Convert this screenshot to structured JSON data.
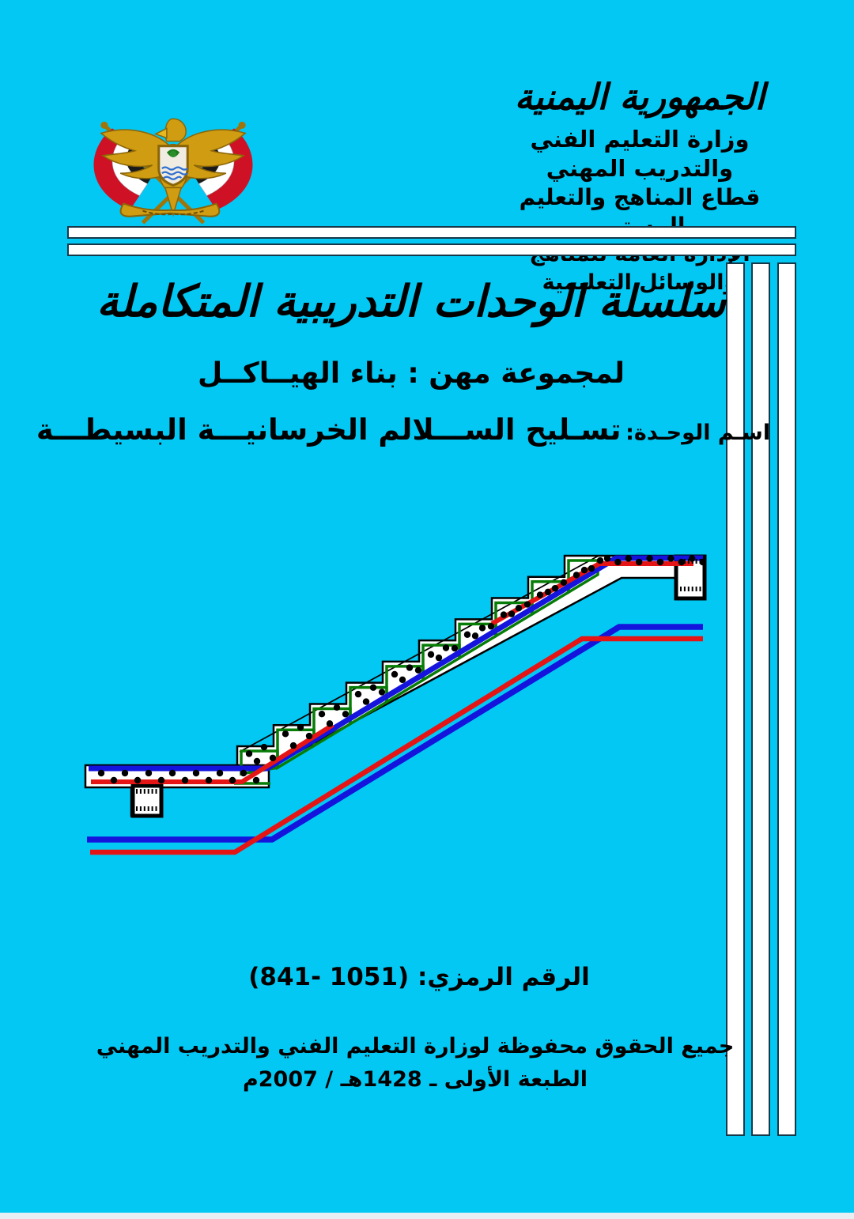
{
  "page": {
    "background": "#03c8f3",
    "stripe_fill": "#ffffff",
    "stripe_border": "#16394a",
    "bottom_edge": "#e8eef2",
    "text_color": "#000000"
  },
  "header": {
    "country_calligraphy": "الجمهورية اليمنية",
    "ministry": "وزارة التعليم الفني والتدريب المهني",
    "sector": "قطاع المناهج والتعليم المستمر",
    "administration": "الإدارة العامة للمناهج والوسائل التعليمية",
    "emblem_icon": "yemen-coat-of-arms"
  },
  "titles": {
    "series": "سلسلة الوحدات التدريبية المتكاملة",
    "group": "لمجموعة مهن : بناء الهيــاكــل",
    "unit_label": "اسـم الوحـدة:",
    "unit_name": "تسـليح الســـلالم الخرسانيـــة البسيطـــة"
  },
  "code": {
    "label": "الرقم الرمزي:",
    "value": "(841- 1051)"
  },
  "footer": {
    "rights": "جميع الحقوق محفوظة لوزارة التعليم الفني والتدريب المهني",
    "edition": "الطبعة الأولى ـ 1428هـ / 2007م"
  },
  "diagram": {
    "type": "technical-drawing",
    "subject": "reinforcement-section-of-simple-concrete-stair",
    "steps": 10,
    "colors": {
      "concrete": "#ffffff",
      "outline": "#000000",
      "stirrup_green": "#077d07",
      "main_bar_blue": "#1414dd",
      "bar_red": "#e51515"
    }
  }
}
